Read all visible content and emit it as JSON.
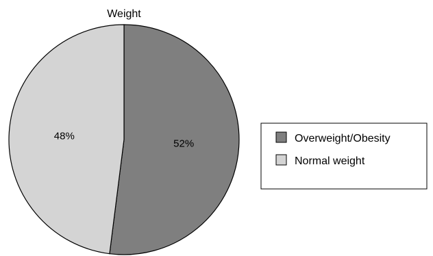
{
  "chart_data": {
    "type": "pie",
    "title": "Weight",
    "categories": [
      "Overweight/Obesity",
      "Normal weight"
    ],
    "values": [
      52,
      48
    ],
    "value_labels": [
      "52%",
      "48%"
    ],
    "colors": [
      "#7f7f7f",
      "#d4d4d4"
    ],
    "legend_position": "right",
    "start_angle": "top, clockwise"
  }
}
